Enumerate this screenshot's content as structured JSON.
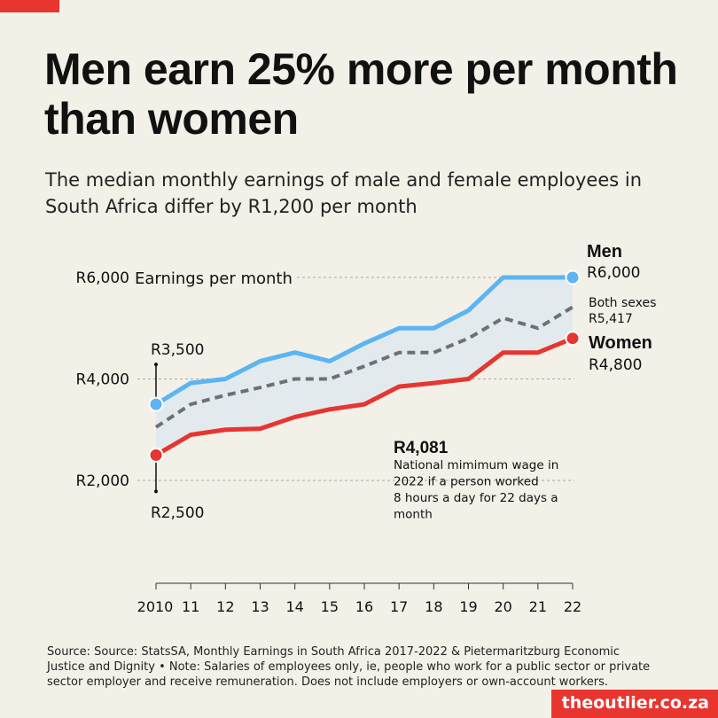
{
  "header": {
    "title": "Men earn 25% more per month than women",
    "subtitle": "The median monthly earnings of male and female employees in South Africa differ by R1,200 per month"
  },
  "colors": {
    "men": "#5cb4f2",
    "women": "#e8352f",
    "both": "#707070",
    "band": "#e2eaed",
    "background": "#f2f0e7",
    "accent": "#e8352f"
  },
  "chart_data": {
    "type": "line",
    "x_tick_labels": [
      "2010",
      "11",
      "12",
      "13",
      "14",
      "15",
      "16",
      "17",
      "18",
      "19",
      "20",
      "21",
      "22"
    ],
    "x": [
      2010,
      2011,
      2012,
      2013,
      2014,
      2015,
      2016,
      2017,
      2018,
      2019,
      2020,
      2021,
      2022
    ],
    "ylabel": "Earnings per month",
    "y_ticks": [
      {
        "value": 2000,
        "label": "R2,000"
      },
      {
        "value": 4000,
        "label": "R4,000"
      },
      {
        "value": 6000,
        "label": "R6,000"
      }
    ],
    "ylim": [
      0,
      6500
    ],
    "grid": true,
    "series": [
      {
        "name": "Men",
        "key": "men",
        "style": "solid",
        "values": [
          3500,
          3920,
          4000,
          4350,
          4520,
          4350,
          4700,
          5000,
          5000,
          5350,
          6000,
          6000,
          6000
        ]
      },
      {
        "name": "Both sexes",
        "key": "both",
        "style": "dashed",
        "values": [
          3050,
          3500,
          3680,
          3830,
          4000,
          4000,
          4250,
          4520,
          4520,
          4800,
          5200,
          5000,
          5417
        ]
      },
      {
        "name": "Women",
        "key": "women",
        "style": "solid",
        "values": [
          2500,
          2900,
          3000,
          3020,
          3250,
          3400,
          3500,
          3850,
          3920,
          4000,
          4520,
          4520,
          4800
        ]
      }
    ],
    "start_labels": {
      "men": "R3,500",
      "women": "R2,500"
    },
    "end_labels": {
      "men": {
        "name": "Men",
        "value": "R6,000"
      },
      "both": {
        "name": "Both sexes",
        "value": "R5,417"
      },
      "women": {
        "name": "Women",
        "value": "R4,800"
      }
    },
    "annotation": {
      "value": "R4,081",
      "text_lines": [
        "National mimimum wage in",
        "2022 if a person worked",
        "8 hours a day for 22 days a",
        "month"
      ]
    }
  },
  "footer": {
    "source": "Source: Source: StatsSA, Monthly Earnings in South Africa 2017-2022 & Pietermaritzburg Economic Justice and Dignity • Note: Salaries of employees only, ie, people who work for a public sector or private sector employer and receive remuneration. Does not include employers or own-account workers.",
    "brand": "theoutlier.co.za"
  }
}
